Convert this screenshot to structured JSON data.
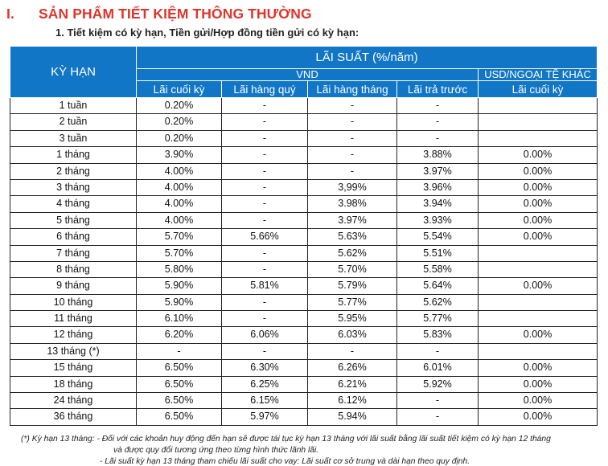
{
  "heading": {
    "number": "I.",
    "text": "SẢN PHẨM TIẾT KIỆM THÔNG THƯỜNG"
  },
  "subheading": "1. Tiết kiệm có kỳ hạn, Tiền gửi/Hợp đồng tiền gửi có kỳ hạn:",
  "table": {
    "term_header": "KỲ HẠN",
    "rate_header": "LÃI SUẤT (%/năm)",
    "vnd_header": "VND",
    "fx_header": "USD/NGOẠI TỆ KHÁC",
    "columns": [
      "Lãi cuối kỳ",
      "Lãi hàng quý",
      "Lãi hàng tháng",
      "Lãi trả trước",
      "Lãi cuối kỳ"
    ],
    "rows": [
      {
        "term": "1 tuần",
        "values": [
          "0.20%",
          "-",
          "-",
          "-",
          ""
        ]
      },
      {
        "term": "2 tuần",
        "values": [
          "0.20%",
          "-",
          "-",
          "-",
          ""
        ]
      },
      {
        "term": "3 tuần",
        "values": [
          "0.20%",
          "-",
          "-",
          "-",
          ""
        ]
      },
      {
        "term": "1 tháng",
        "values": [
          "3.90%",
          "-",
          "-",
          "3.88%",
          "0.00%"
        ]
      },
      {
        "term": "2 tháng",
        "values": [
          "4.00%",
          "-",
          "-",
          "3.97%",
          "0.00%"
        ]
      },
      {
        "term": "3 tháng",
        "values": [
          "4.00%",
          "-",
          "3,99%",
          "3.96%",
          "0.00%"
        ]
      },
      {
        "term": "4 tháng",
        "values": [
          "4.00%",
          "-",
          "3.98%",
          "3.94%",
          "0.00%"
        ]
      },
      {
        "term": "5 tháng",
        "values": [
          "4.00%",
          "-",
          "3.97%",
          "3.93%",
          "0.00%"
        ]
      },
      {
        "term": "6 tháng",
        "values": [
          "5.70%",
          "5.66%",
          "5.63%",
          "5.54%",
          "0.00%"
        ]
      },
      {
        "term": "7 tháng",
        "values": [
          "5.70%",
          "-",
          "5.62%",
          "5.51%",
          ""
        ]
      },
      {
        "term": "8 tháng",
        "values": [
          "5.80%",
          "-",
          "5.70%",
          "5.58%",
          ""
        ]
      },
      {
        "term": "9 tháng",
        "values": [
          "5.90%",
          "5.81%",
          "5.79%",
          "5.64%",
          "0.00%"
        ]
      },
      {
        "term": "10 tháng",
        "values": [
          "5.90%",
          "-",
          "5.77%",
          "5.62%",
          ""
        ]
      },
      {
        "term": "11 tháng",
        "values": [
          "6.10%",
          "-",
          "5.95%",
          "5.77%",
          ""
        ]
      },
      {
        "term": "12 tháng",
        "values": [
          "6.20%",
          "6.06%",
          "6.03%",
          "5.83%",
          "0.00%"
        ]
      },
      {
        "term": "13 tháng (*)",
        "values": [
          "-",
          "-",
          "-",
          "-",
          ""
        ]
      },
      {
        "term": "15 tháng",
        "values": [
          "6.50%",
          "6.30%",
          "6.26%",
          "6.01%",
          "0.00%"
        ]
      },
      {
        "term": "18 tháng",
        "values": [
          "6.50%",
          "6.25%",
          "6.21%",
          "5.92%",
          "0.00%"
        ]
      },
      {
        "term": "24 tháng",
        "values": [
          "6.50%",
          "6.15%",
          "6.12%",
          "-",
          "0.00%"
        ]
      },
      {
        "term": "36 tháng",
        "values": [
          "6.50%",
          "5.97%",
          "5.94%",
          "-",
          "0.00%"
        ]
      }
    ]
  },
  "notes": [
    "(*) Kỳ hạn 13 tháng: - Đối với các khoản huy động đến hạn sẽ được tái tục kỳ hạn 13 tháng với lãi suất bằng lãi suất tiết kiệm có kỳ hạn 12 tháng",
    "và được quy đổi tương ứng theo từng hình thức lãnh lãi.",
    "- Lãi suất kỳ hạn 13 tháng tham chiếu lãi suất cho vay: Lãi suất cơ sở trung và dài hạn theo quy định."
  ],
  "colors": {
    "heading": "#e0352b",
    "header_bg": "#1276c7",
    "header_text": "#ffffff"
  }
}
